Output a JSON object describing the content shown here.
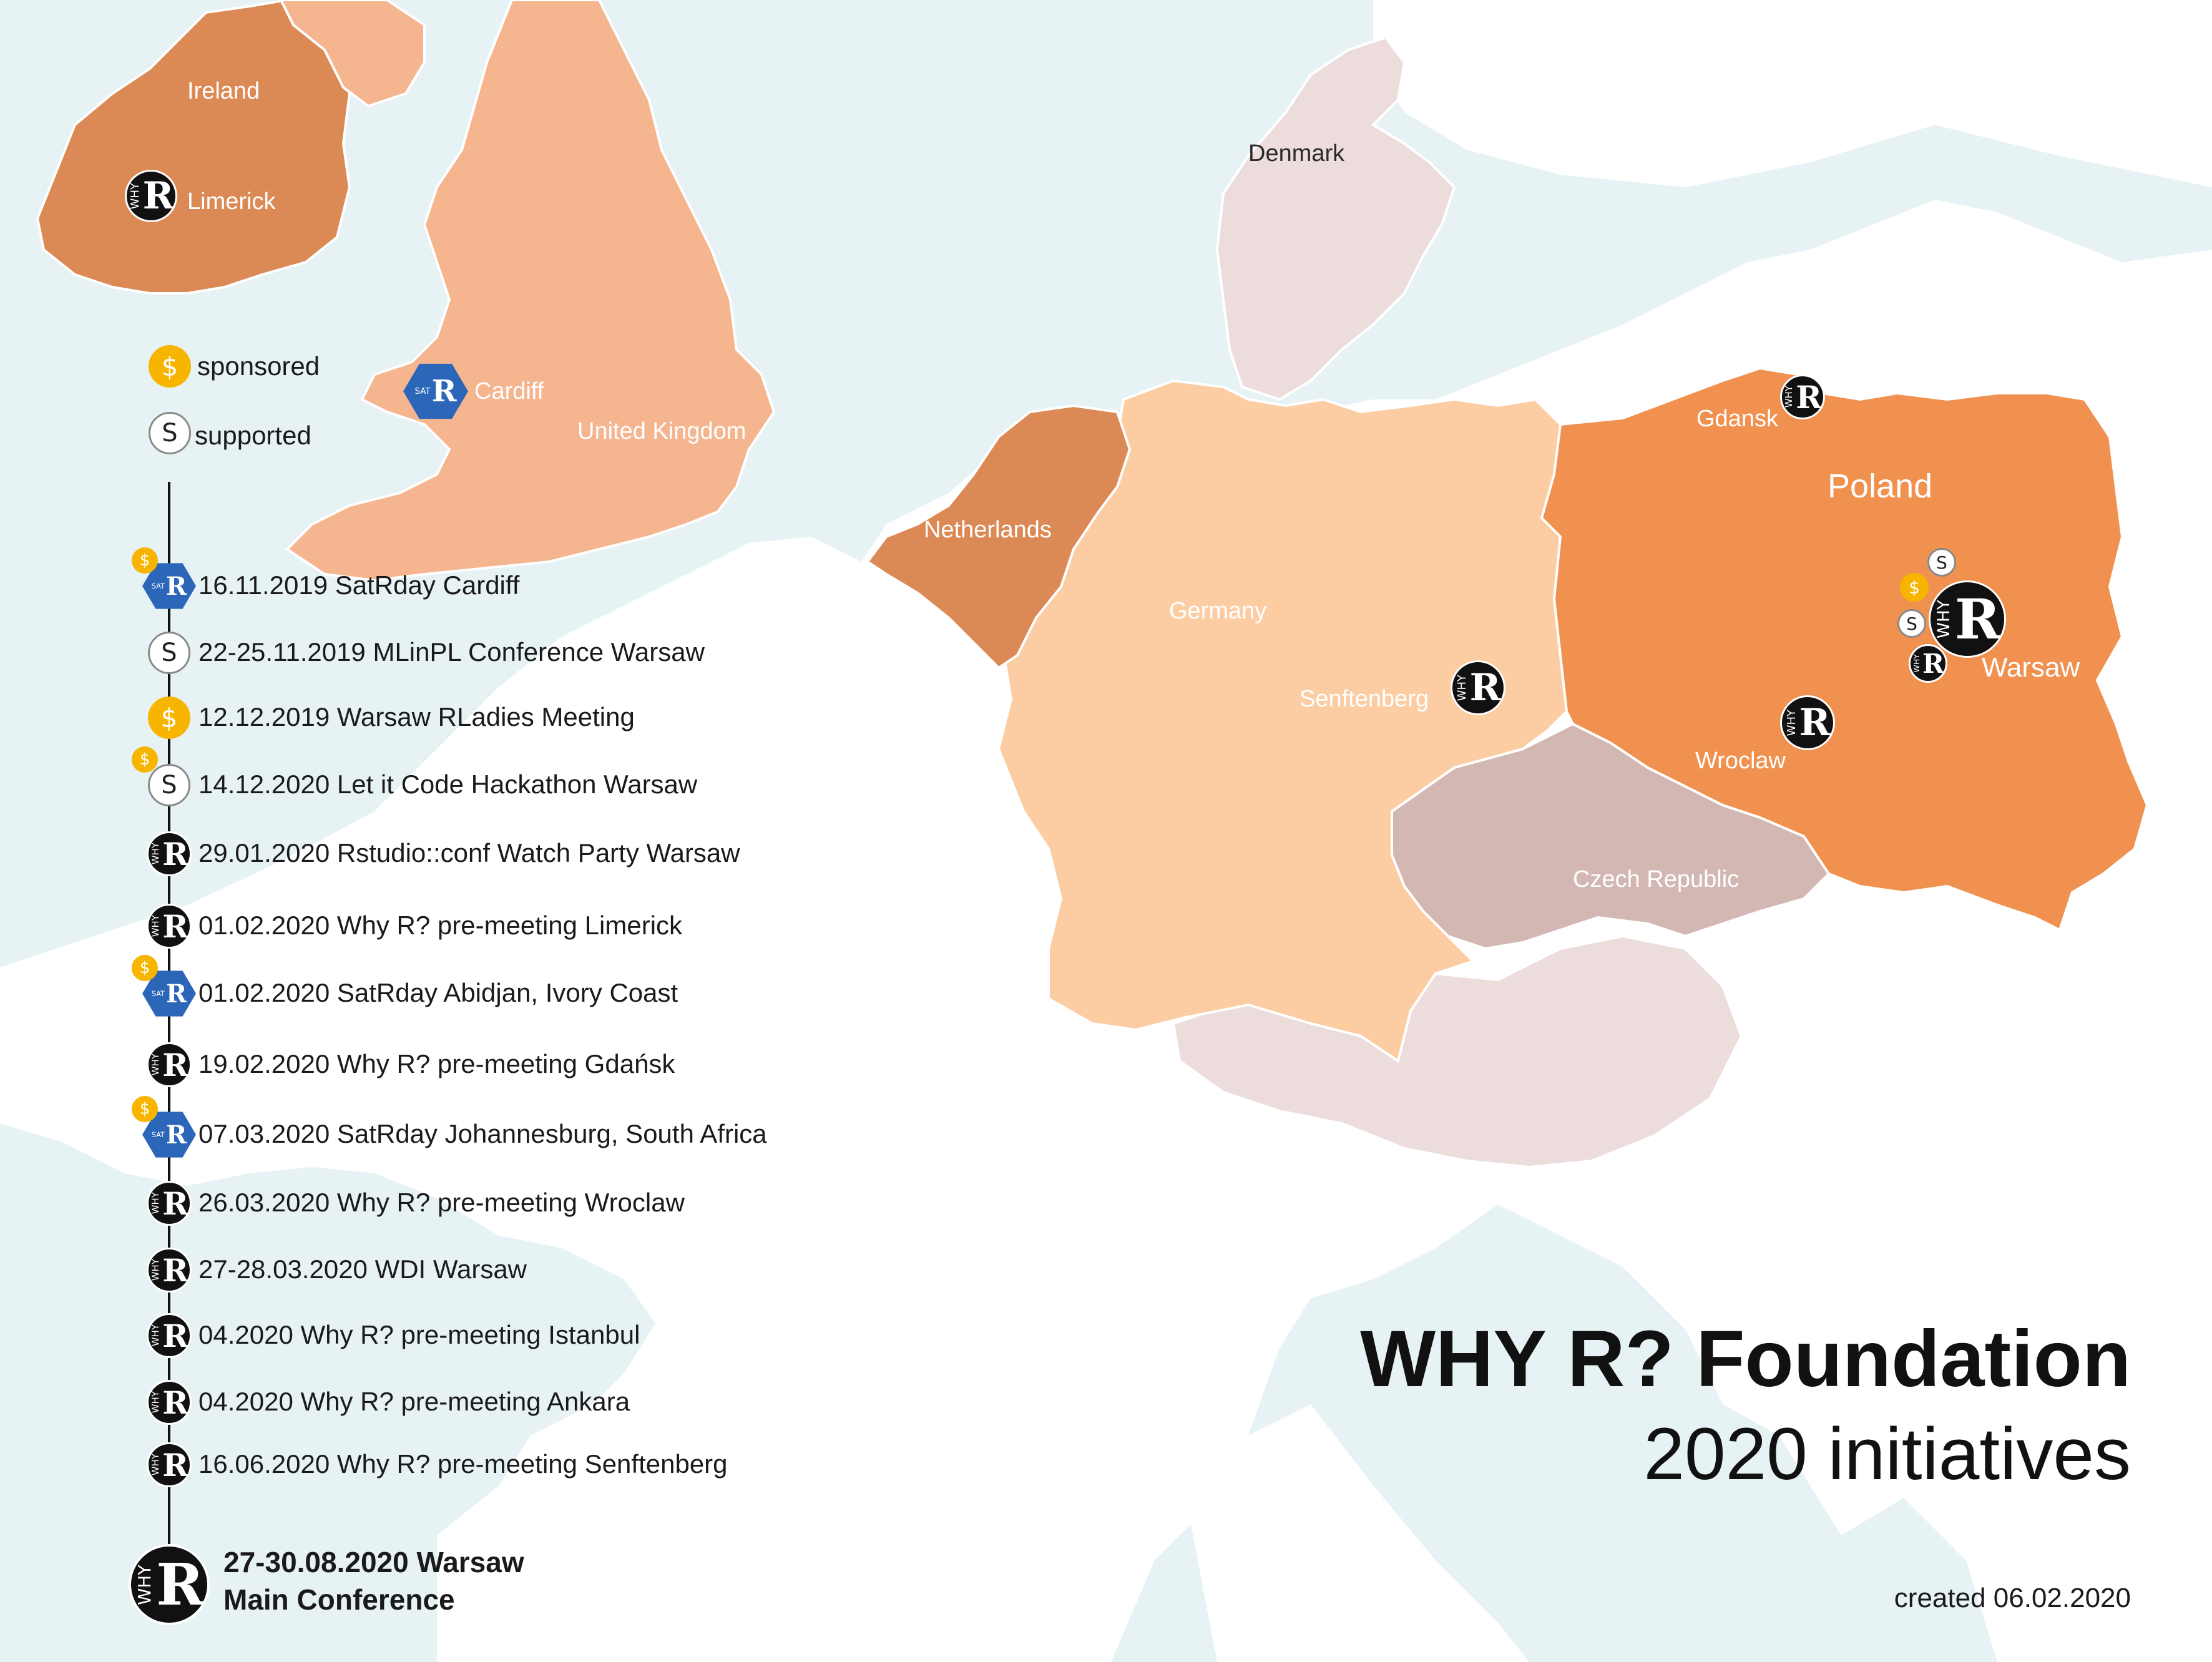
{
  "title": {
    "line1": "WHY R? Foundation",
    "line2": "2020 initiatives"
  },
  "created": "created 06.02.2020",
  "colors": {
    "sea": "#e6f2f4",
    "land": "#ffffff",
    "poland": "#f0914f",
    "ireland_netherlands": "#dc8a55",
    "uk": "#f5b58f",
    "germany": "#fccda2",
    "czech": "#d3b7b3",
    "denmark_austria_switzerland": "#ecdcdc",
    "satrday_blue": "#2b66b8",
    "sponsored_gold": "#f7b500"
  },
  "legend": {
    "sponsored": "sponsored",
    "supported": "supported"
  },
  "countries": {
    "ireland": "Ireland",
    "uk": "United Kingdom",
    "denmark": "Denmark",
    "netherlands": "Netherlands",
    "germany": "Germany",
    "poland": "Poland",
    "czech": "Czech Republic"
  },
  "cities": {
    "limerick": "Limerick",
    "cardiff": "Cardiff",
    "gdansk": "Gdansk",
    "warsaw": "Warsaw",
    "wroclaw": "Wroclaw",
    "senftenberg": "Senftenberg"
  },
  "timeline": [
    {
      "text": "16.11.2019 SatRday Cardiff",
      "icon": "satrday",
      "badge": "sponsored"
    },
    {
      "text": "22-25.11.2019 MLinPL Conference Warsaw",
      "icon": "supported"
    },
    {
      "text": "12.12.2019 Warsaw RLadies Meeting",
      "icon": "sponsored"
    },
    {
      "text": "14.12.2020 Let it Code Hackathon Warsaw",
      "icon": "supported",
      "badge": "sponsored"
    },
    {
      "text": "29.01.2020 Rstudio::conf Watch Party Warsaw",
      "icon": "whyr"
    },
    {
      "text": "01.02.2020 Why R? pre-meeting Limerick",
      "icon": "whyr"
    },
    {
      "text": "01.02.2020 SatRday Abidjan, Ivory Coast",
      "icon": "satrday",
      "badge": "sponsored"
    },
    {
      "text": "19.02.2020 Why R? pre-meeting Gdańsk",
      "icon": "whyr"
    },
    {
      "text": "07.03.2020 SatRday Johannesburg, South Africa",
      "icon": "satrday",
      "badge": "sponsored"
    },
    {
      "text": "26.03.2020 Why R? pre-meeting Wroclaw",
      "icon": "whyr"
    },
    {
      "text": "27-28.03.2020 WDI Warsaw",
      "icon": "whyr"
    },
    {
      "text": "04.2020 Why R? pre-meeting Istanbul",
      "icon": "whyr"
    },
    {
      "text": "04.2020 Why R? pre-meeting Ankara",
      "icon": "whyr"
    },
    {
      "text": "16.06.2020 Why R? pre-meeting Senftenberg",
      "icon": "whyr"
    }
  ],
  "main_conference": {
    "line1": "27-30.08.2020 Warsaw",
    "line2": "Main Conference"
  },
  "icons": {
    "whyr_letter": "R",
    "whyr_side": "WHY",
    "sat_side": "SAT",
    "coin_symbol": "$",
    "supported_symbol": "S"
  }
}
